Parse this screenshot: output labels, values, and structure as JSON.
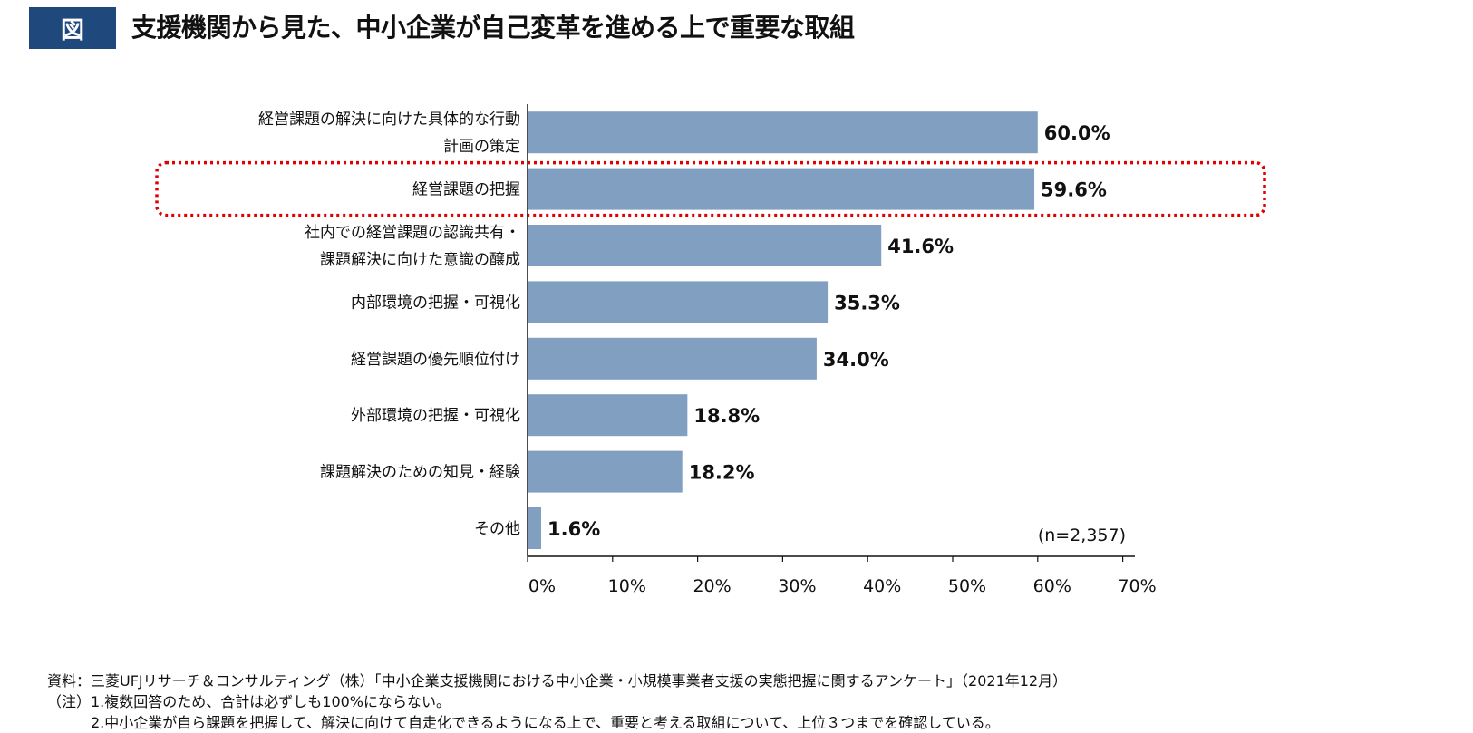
{
  "header": {
    "badge": "図",
    "title": "支援機関から見た、中小企業が自己変革を進める上で重要な取組"
  },
  "chart_data": {
    "type": "bar",
    "orientation": "horizontal",
    "categories": [
      [
        "経営課題の解決に向けた具体的な行動",
        "計画の策定"
      ],
      [
        "経営課題の把握"
      ],
      [
        "社内での経営課題の認識共有・",
        "課題解決に向けた意識の醸成"
      ],
      [
        "内部環境の把握・可視化"
      ],
      [
        "経営課題の優先順位付け"
      ],
      [
        "外部環境の把握・可視化"
      ],
      [
        "課題解決のための知見・経験"
      ],
      [
        "その他"
      ]
    ],
    "values": [
      60.0,
      59.6,
      41.6,
      35.3,
      34.0,
      18.8,
      18.2,
      1.6
    ],
    "data_labels": [
      "60.0%",
      "59.6%",
      "41.6%",
      "35.3%",
      "34.0%",
      "18.8%",
      "18.2%",
      "1.6%"
    ],
    "xlim": [
      0,
      70
    ],
    "xticks": [
      "0%",
      "10%",
      "20%",
      "30%",
      "40%",
      "50%",
      "60%",
      "70%"
    ],
    "annotation": "(n=2,357)",
    "highlighted_category_index": 1,
    "grid": false,
    "colors": {
      "bar": "#819fc0",
      "highlight_box": "#e00000"
    }
  },
  "footer": {
    "source": "資料：三菱UFJリサーチ＆コンサルティング（株）「中小企業支援機関における中小企業・小規模事業者支援の実態把握に関するアンケート」（2021年12月）",
    "note1": "（注）1.複数回答のため、合計は必ずしも100%にならない。",
    "note2": "　　　2.中小企業が自ら課題を把握して、解決に向けて自走化できるようになる上で、重要と考える取組について、上位３つまでを確認している。"
  }
}
